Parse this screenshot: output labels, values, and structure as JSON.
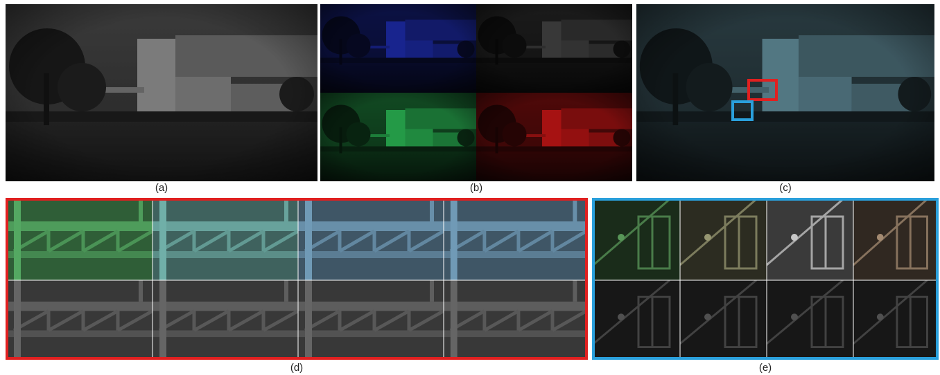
{
  "captions": {
    "a": "(a)",
    "b": "(b)",
    "c": "(c)",
    "d": "(d)",
    "e": "(e)"
  }
}
